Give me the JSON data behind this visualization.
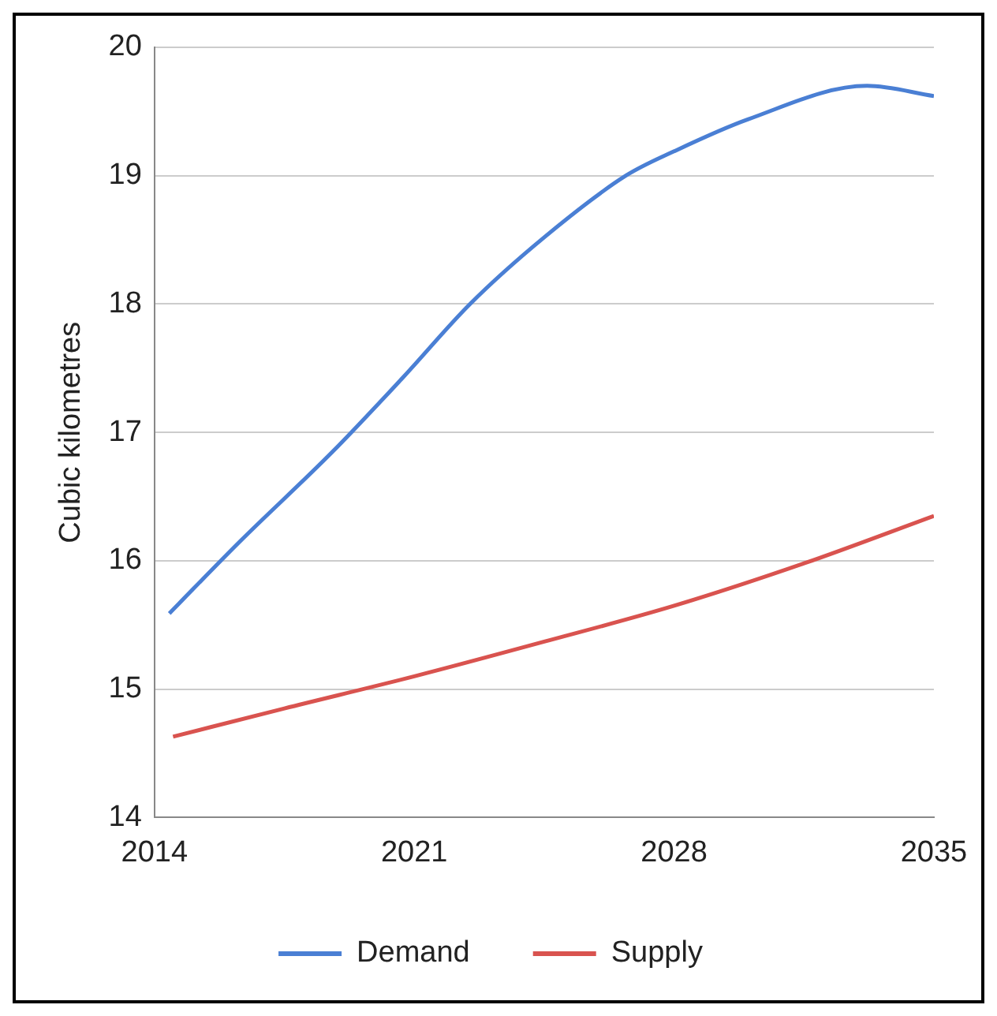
{
  "chart_data": {
    "type": "line",
    "ylabel": "Cubic kilometres",
    "xlim": [
      2014,
      2035
    ],
    "xticks": [
      2014,
      2021,
      2028,
      2035
    ],
    "ylim": [
      14,
      20
    ],
    "yticks": [
      14,
      15,
      16,
      17,
      18,
      19,
      20
    ],
    "grid": "y",
    "legend": "bottom",
    "marker": "none",
    "line_style": "solid",
    "series": [
      {
        "name": "Demand",
        "color": "#4a7fd4",
        "x": [
          2014.4,
          2016.3,
          2018.8,
          2020.7,
          2022.5,
          2024.5,
          2026.7,
          2028,
          2030,
          2033.2,
          2035
        ],
        "values": [
          15.59,
          16.15,
          16.85,
          17.43,
          18.0,
          18.52,
          19.0,
          19.19,
          19.44,
          19.7,
          19.62
        ]
      },
      {
        "name": "Supply",
        "color": "#d9534f",
        "x": [
          2014.5,
          2017.5,
          2021,
          2024.5,
          2028,
          2031.5,
          2035
        ],
        "values": [
          14.63,
          14.85,
          15.1,
          15.37,
          15.65,
          15.98,
          16.35
        ]
      }
    ]
  }
}
